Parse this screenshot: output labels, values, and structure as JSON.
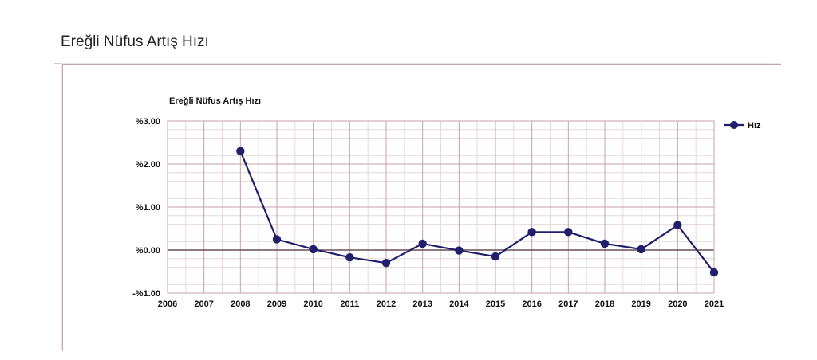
{
  "page": {
    "title": "Ereğli Nüfus Artış Hızı"
  },
  "chart_data": {
    "type": "line",
    "title": "Ereğli Nüfus Artış Hızı",
    "xlabel": "",
    "ylabel": "",
    "categories": [
      "2006",
      "2007",
      "2008",
      "2009",
      "2010",
      "2011",
      "2012",
      "2013",
      "2014",
      "2015",
      "2016",
      "2017",
      "2018",
      "2019",
      "2020",
      "2021"
    ],
    "x_tick_labels": [
      "2006",
      "2007",
      "2008",
      "2009",
      "2010",
      "2011",
      "2012",
      "2013",
      "2014",
      "2015",
      "2016",
      "2017",
      "2018",
      "2019",
      "2020",
      "2021"
    ],
    "y_tick_labels": [
      "%3.00",
      "%2.00",
      "%1.00",
      "%0.00",
      "-%1.00"
    ],
    "y_ticks": [
      3,
      2,
      1,
      0,
      -1
    ],
    "ylim": [
      -1,
      3
    ],
    "grid": true,
    "legend_position": "top-right",
    "series": [
      {
        "name": "Hız",
        "color": "#1f1f6b",
        "x": [
          "2008",
          "2009",
          "2010",
          "2011",
          "2012",
          "2013",
          "2014",
          "2015",
          "2016",
          "2017",
          "2018",
          "2019",
          "2020",
          "2021"
        ],
        "values": [
          2.3,
          0.25,
          0.02,
          -0.17,
          -0.3,
          0.15,
          -0.01,
          -0.15,
          0.42,
          0.42,
          0.15,
          0.02,
          0.58,
          -0.52
        ]
      }
    ],
    "colors": {
      "line": "#1f1f6b",
      "grid_major": "#c8a2a8",
      "grid_minor": "#e8d6d8",
      "zero_line": "#6b4f55"
    }
  }
}
